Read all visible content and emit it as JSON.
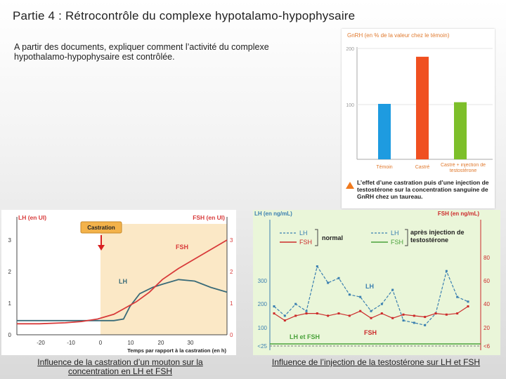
{
  "slide": {
    "title": "Partie 4 : Rétrocontrôle du complexe hypotalamo-hypophysaire",
    "instruction": "A partir des documents, expliquer comment l’activité du complexe hypothalamo-hypophysaire est contrôlée.",
    "caption_left": "Influence de la castration d’un mouton sur la concentration en LH et FSH",
    "caption_right": "Influence de l’injection de la testostérone sur LH et FSH"
  },
  "chart_data": [
    {
      "id": "gnrh",
      "type": "bar",
      "ylabel": "GnRH (en % de la valeur chez le témoin)",
      "yticks": [
        "100",
        "200"
      ],
      "ylim": [
        0,
        200
      ],
      "categories": [
        "Témoin",
        "Castré",
        "Castré + injection de testostérone"
      ],
      "values": [
        100,
        185,
        103
      ],
      "colors": [
        "#1e9be0",
        "#f05020",
        "#7dbf2a"
      ],
      "caption": "L’effet d’une castration puis d’une injection de testostérone sur la concentration sanguine de GnRH chez un taureau."
    },
    {
      "id": "castration",
      "type": "line",
      "ylabel_left": "LH (en UI)",
      "ylabel_right": "FSH (en UI)",
      "xlabel": "Temps par rapport à la castration (en h)",
      "event_label": "Castration",
      "xticks": [
        "-20",
        "-10",
        "0",
        "10",
        "20",
        "30"
      ],
      "yticks_left": [
        "0",
        "1",
        "2",
        "3"
      ],
      "yticks_right": [
        "0",
        "1",
        "2",
        "3"
      ],
      "xlim": [
        -25,
        40
      ],
      "ylim": [
        0,
        3.4
      ],
      "series": [
        {
          "name": "LH",
          "color": "#3a6b78",
          "x": [
            -25,
            -18,
            -10,
            -5,
            0,
            5,
            8,
            10,
            13,
            17,
            20,
            25,
            30,
            35,
            40
          ],
          "y": [
            0.45,
            0.45,
            0.45,
            0.45,
            0.45,
            0.45,
            0.5,
            0.9,
            1.3,
            1.5,
            1.6,
            1.75,
            1.7,
            1.5,
            1.35
          ]
        },
        {
          "name": "FSH",
          "color": "#d83a3a",
          "x": [
            -25,
            -18,
            -10,
            -5,
            0,
            5,
            8,
            12,
            16,
            20,
            25,
            30,
            35,
            40
          ],
          "y": [
            0.35,
            0.35,
            0.38,
            0.42,
            0.5,
            0.65,
            0.82,
            1.05,
            1.35,
            1.75,
            2.1,
            2.4,
            2.7,
            3.0
          ]
        }
      ]
    },
    {
      "id": "injection",
      "type": "line",
      "ylabel_left": "LH (en ng/mL)",
      "ylabel_right": "FSH (en ng/mL)",
      "yticks_left": [
        "<25",
        "100",
        "200",
        "300"
      ],
      "yticks_right": [
        "<6",
        "20",
        "40",
        "60",
        "80"
      ],
      "legend": {
        "normal": "normal",
        "after": "après injection de testostérone",
        "lh": "LH",
        "fsh": "FSH",
        "lh_fsh": "LH et FSH"
      },
      "series": [
        {
          "name": "LH",
          "color": "#3a7fb0",
          "x": [
            0,
            1,
            2,
            3,
            4,
            5,
            6,
            7,
            8,
            9,
            10,
            11,
            12,
            13,
            14,
            15,
            16,
            17,
            18
          ],
          "y": [
            200,
            160,
            210,
            180,
            370,
            300,
            320,
            250,
            240,
            180,
            210,
            270,
            140,
            130,
            120,
            170,
            350,
            240,
            220
          ]
        },
        {
          "name": "FSH",
          "color": "#cc2b2b",
          "x": [
            0,
            1,
            2,
            3,
            4,
            5,
            6,
            7,
            8,
            9,
            10,
            11,
            12,
            13,
            14,
            15,
            16,
            17,
            18
          ],
          "y": [
            34,
            28,
            32,
            34,
            34,
            32,
            34,
            32,
            36,
            30,
            34,
            30,
            33,
            32,
            31,
            34,
            33,
            34,
            40
          ]
        }
      ]
    }
  ]
}
